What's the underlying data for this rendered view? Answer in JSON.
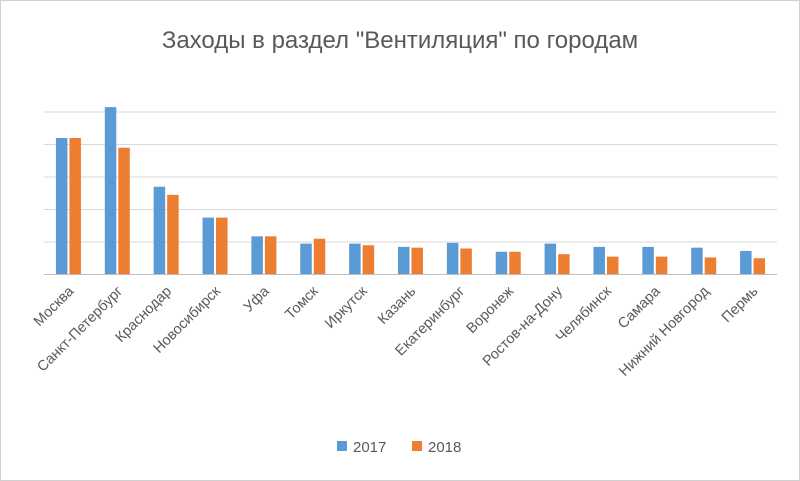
{
  "colors": {
    "s2017": "#5b9bd5",
    "s2018": "#ed7d31"
  },
  "chart_data": {
    "type": "bar",
    "title": "Заходы в раздел \"Вентиляция\" по городам",
    "xlabel": "",
    "ylabel": "",
    "ylim": [
      0,
      100
    ],
    "grid": true,
    "legend_position": "bottom",
    "categories": [
      "Москва",
      "Санкт-Петербург",
      "Краснодар",
      "Новосибирск",
      "Уфа",
      "Томск",
      "Иркутск",
      "Казань",
      "Екатеринбург",
      "Воронеж",
      "Ростов-на-Дону",
      "Челябинск",
      "Самара",
      "Нижний Новгород",
      "Пермь"
    ],
    "series": [
      {
        "name": "2017",
        "values": [
          84,
          103,
          54,
          35,
          23.5,
          19,
          19,
          17,
          19.5,
          14,
          19,
          17,
          17,
          16.5,
          14.5
        ]
      },
      {
        "name": "2018",
        "values": [
          84,
          78,
          49,
          35,
          23.5,
          22,
          18,
          16.5,
          16,
          14,
          12.5,
          11,
          11,
          10.5,
          10
        ]
      }
    ]
  }
}
